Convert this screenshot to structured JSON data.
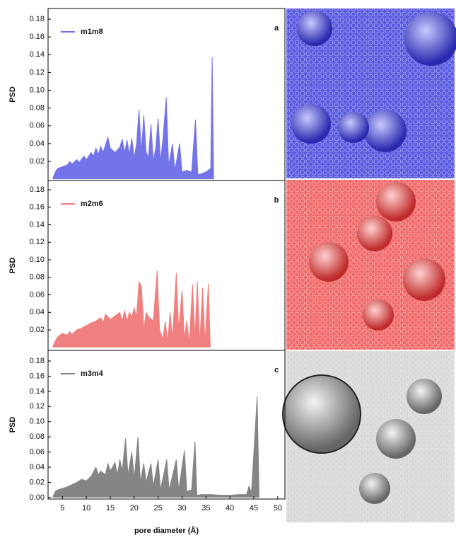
{
  "chart_data": [
    {
      "type": "area",
      "annotation": "a",
      "ylabel": "PSD",
      "xlim": [
        2,
        51.5
      ],
      "ylim": [
        -0.0015,
        0.192
      ],
      "yticks": [
        0.02,
        0.04,
        0.06,
        0.08,
        {
          "value": 0.1,
          "label": "0.10"
        },
        0.12,
        0.14,
        0.16,
        0.18
      ],
      "x": [
        3,
        3.5,
        4,
        5,
        6,
        6.5,
        7,
        8,
        8.5,
        9.5,
        10,
        11,
        11.5,
        12,
        12.5,
        13,
        13.5,
        14.5,
        15,
        16,
        17,
        17.5,
        18,
        18.5,
        19,
        19.5,
        20,
        20.5,
        21,
        21.5,
        22,
        22.5,
        23,
        23.5,
        24,
        24.5,
        25,
        25.5,
        26,
        26.7,
        27.2,
        28,
        28.5,
        29.5,
        30,
        31,
        32,
        32.8,
        33.3,
        34,
        35,
        36,
        36.3,
        36.6
      ],
      "series": [
        {
          "name": "m1m8",
          "color": "#7474ea",
          "values": [
            0.001,
            0.008,
            0.012,
            0.014,
            0.016,
            0.02,
            0.017,
            0.022,
            0.019,
            0.026,
            0.022,
            0.03,
            0.026,
            0.035,
            0.028,
            0.037,
            0.03,
            0.047,
            0.035,
            0.03,
            0.036,
            0.045,
            0.03,
            0.044,
            0.028,
            0.046,
            0.024,
            0.04,
            0.078,
            0.03,
            0.072,
            0.03,
            0.025,
            0.062,
            0.02,
            0.035,
            0.068,
            0.02,
            0.045,
            0.092,
            0.015,
            0.04,
            0.01,
            0.04,
            0.008,
            0.01,
            0.008,
            0.067,
            0.005,
            0.006,
            0.008,
            0.012,
            0.137,
            0
          ]
        }
      ]
    },
    {
      "type": "area",
      "annotation": "b",
      "ylabel": "PSD",
      "xlim": [
        2,
        51.5
      ],
      "ylim": [
        -0.0034,
        0.1905
      ],
      "yticks": [
        0.02,
        0.04,
        0.06,
        0.08,
        {
          "value": 0.1,
          "label": "0.10"
        },
        0.12,
        0.14,
        0.16,
        0.18
      ],
      "x": [
        3,
        3.5,
        4,
        5,
        6,
        6.5,
        7,
        8,
        9,
        10,
        11,
        12,
        13,
        13.5,
        14,
        15,
        16,
        17,
        17.5,
        18,
        18.5,
        19,
        19.5,
        20,
        20.5,
        21,
        21.5,
        22,
        22.5,
        23,
        24,
        24.8,
        25.3,
        26,
        26.5,
        27,
        27.5,
        28,
        28.8,
        29.3,
        30,
        30.5,
        31,
        31.5,
        32.2,
        32.7,
        33.2,
        33.7,
        34.3,
        34.8,
        35.5,
        35.9
      ],
      "series": [
        {
          "name": "m2m6",
          "color": "#f08080",
          "values": [
            0.001,
            0.007,
            0.012,
            0.016,
            0.014,
            0.018,
            0.015,
            0.02,
            0.022,
            0.025,
            0.028,
            0.03,
            0.034,
            0.028,
            0.038,
            0.032,
            0.036,
            0.04,
            0.03,
            0.042,
            0.03,
            0.04,
            0.035,
            0.045,
            0.035,
            0.075,
            0.07,
            0.02,
            0.04,
            0.035,
            0.03,
            0.088,
            0.02,
            0.01,
            0.03,
            0.005,
            0.04,
            0.01,
            0.085,
            0.02,
            0.065,
            0.01,
            0.03,
            0.005,
            0.072,
            0.01,
            0.075,
            0.005,
            0.068,
            0.005,
            0.073,
            0
          ]
        }
      ]
    },
    {
      "type": "area",
      "annotation": "c",
      "ylabel": "PSD",
      "xlabel": "pore diameter (Å)",
      "xlim": [
        2,
        51.5
      ],
      "ylim": [
        -0.002,
        0.194
      ],
      "xticks": [
        5,
        10,
        15,
        20,
        25,
        30,
        35,
        40,
        45,
        50
      ],
      "yticks": [
        {
          "value": 0,
          "label": "0.00"
        },
        0.02,
        0.04,
        0.06,
        0.08,
        {
          "value": 0.1,
          "label": "0.10"
        },
        0.12,
        0.14,
        0.16,
        0.18
      ],
      "x": [
        3,
        3.5,
        4,
        5,
        6,
        7,
        8,
        9,
        10,
        11,
        12,
        12.5,
        13,
        14,
        14.5,
        15,
        16,
        16.5,
        17,
        17.5,
        18.2,
        18.7,
        19.5,
        20,
        20.8,
        21.3,
        22,
        22.5,
        23.5,
        24,
        25,
        25.5,
        26.8,
        27.3,
        28.8,
        29.3,
        30.5,
        31,
        32,
        32.7,
        33.1,
        34,
        36,
        38,
        40,
        42,
        43.5,
        44,
        44.5,
        45.7,
        46.1
      ],
      "series": [
        {
          "name": "m3m4",
          "color": "#858585",
          "values": [
            0.001,
            0.008,
            0.01,
            0.012,
            0.014,
            0.017,
            0.02,
            0.024,
            0.022,
            0.028,
            0.04,
            0.03,
            0.035,
            0.03,
            0.045,
            0.035,
            0.046,
            0.03,
            0.05,
            0.035,
            0.078,
            0.03,
            0.06,
            0.025,
            0.08,
            0.02,
            0.045,
            0.02,
            0.045,
            0.015,
            0.05,
            0.01,
            0.05,
            0.01,
            0.05,
            0.01,
            0.062,
            0.008,
            0.01,
            0.074,
            0.003,
            0.004,
            0.004,
            0.003,
            0.003,
            0.004,
            0.004,
            0.015,
            0.006,
            0.133,
            0
          ]
        }
      ]
    }
  ]
}
